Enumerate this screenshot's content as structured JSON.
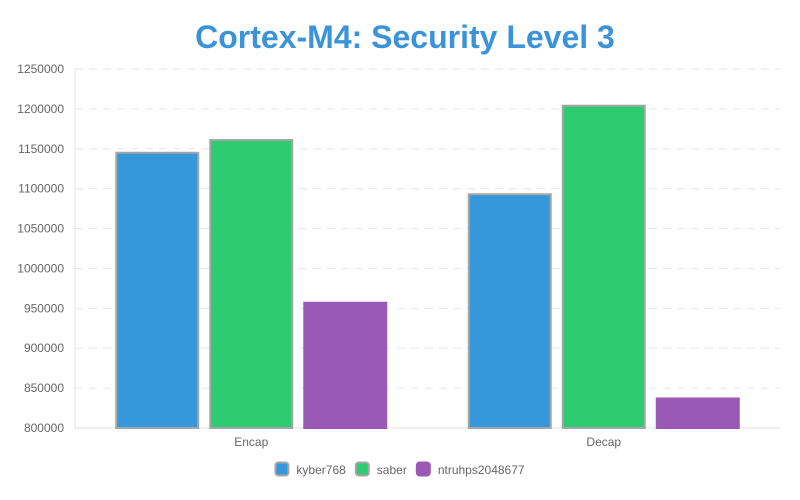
{
  "chart_data": {
    "type": "bar",
    "title": "Cortex-M4: Security Level 3",
    "title_color": "#3b94d9",
    "categories": [
      "Encap",
      "Decap"
    ],
    "series": [
      {
        "name": "kyber768",
        "values": [
          1145000,
          1093000
        ],
        "color": "#3498db",
        "border": "#a6a6a6"
      },
      {
        "name": "saber",
        "values": [
          1161000,
          1204000
        ],
        "color": "#2ecc71",
        "border": "#a6a6a6"
      },
      {
        "name": "ntruhps2048677",
        "values": [
          957000,
          837000
        ],
        "color": "#9b59b6",
        "border": "#9b59b6"
      }
    ],
    "yticks": [
      "1250000",
      "1200000",
      "1150000",
      "1100000",
      "1050000",
      "1000000",
      "950000",
      "900000",
      "850000",
      "800000"
    ],
    "ylim": [
      800000,
      1250000
    ],
    "grid": true,
    "legend_position": "bottom"
  }
}
